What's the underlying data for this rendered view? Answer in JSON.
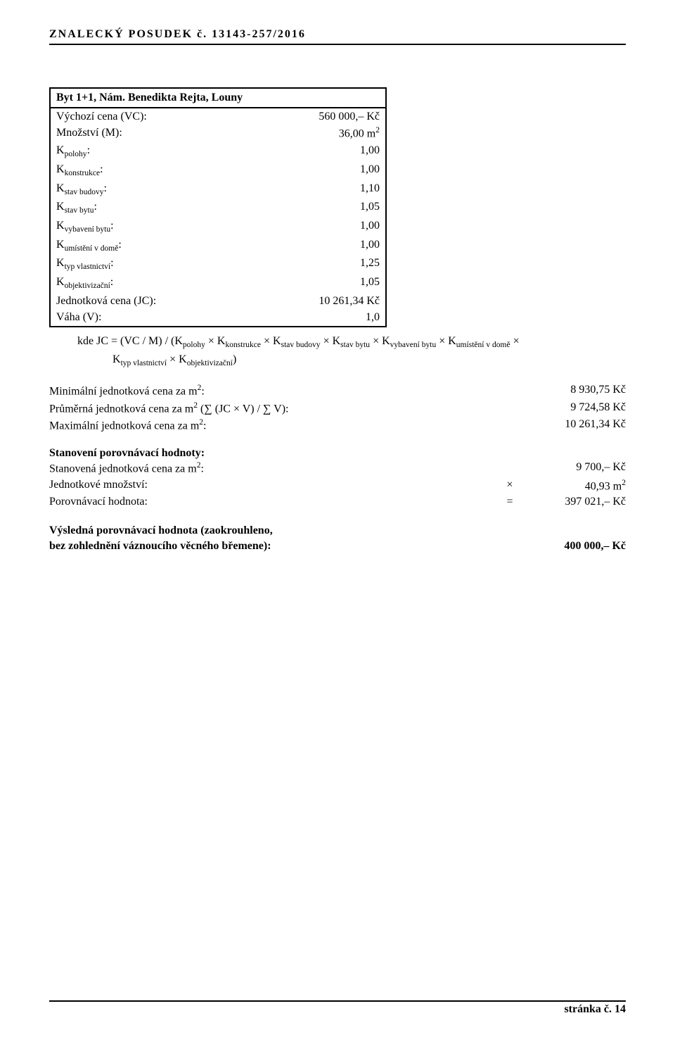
{
  "header": {
    "left": "ZNALECKÝ   POSUDEK č. 13143-257/2016"
  },
  "box": {
    "title": "Byt 1+1, Nám. Benedikta Rejta, Louny",
    "rows": [
      {
        "label_plain": "Výchozí cena (VC):",
        "value": "560 000,–  Kč"
      },
      {
        "label_plain": "Množství (M):",
        "value_html": "36,00 m<span class=\"sup\">2</span>"
      },
      {
        "label_html": "K<span class=\"sub\">polohy</span>:",
        "value": "1,00"
      },
      {
        "label_html": "K<span class=\"sub\">konstrukce</span>:",
        "value": "1,00"
      },
      {
        "label_html": "K<span class=\"sub\">stav budovy</span>:",
        "value": "1,10"
      },
      {
        "label_html": "K<span class=\"sub\">stav bytu</span>:",
        "value": "1,05"
      },
      {
        "label_html": "K<span class=\"sub\">vybavení bytu</span>:",
        "value": "1,00"
      },
      {
        "label_html": "K<span class=\"sub\">umístění v domě</span>:",
        "value": "1,00"
      },
      {
        "label_html": "K<span class=\"sub\">typ vlastnictví</span>:",
        "value": "1,25"
      },
      {
        "label_html": "K<span class=\"sub\">objektivizační</span>:",
        "value": "1,05"
      },
      {
        "label_plain": "Jednotková cena (JC):",
        "value": "10 261,34 Kč"
      },
      {
        "label_plain": "Váha (V):",
        "value": "1,0"
      }
    ]
  },
  "formula": {
    "line1_html": "kde JC = (VC / M) / (K<span class=\"sub\">polohy</span> × K<span class=\"sub\">konstrukce</span> × K<span class=\"sub\">stav budovy</span> × K<span class=\"sub\">stav bytu</span> × K<span class=\"sub\">vybavení bytu</span> × K<span class=\"sub\">umístění v domě</span> ×",
    "line2_html": "K<span class=\"sub\">typ vlastnictví</span> × K<span class=\"sub\">objektivizační</span>)"
  },
  "summary1": {
    "rows": [
      {
        "label_html": "Minimální jednotková cena za m<span class=\"sup\">2</span>:",
        "value": "8 930,75 Kč"
      },
      {
        "label_html": "Průměrná jednotková cena za m<span class=\"sup\">2</span> (∑ (JC × V)   /   ∑ V):",
        "value": "9 724,58 Kč"
      },
      {
        "label_html": "Maximální jednotková cena za m<span class=\"sup\">2</span>:",
        "value": "10 261,34 Kč"
      }
    ]
  },
  "summary2": {
    "heading": "Stanovení porovnávací hodnoty:",
    "rows": [
      {
        "label_html": "Stanovená jednotková cena za m<span class=\"sup\">2</span>:",
        "op": "",
        "value": "9 700,–  Kč"
      },
      {
        "label_plain": "Jednotkové množství:",
        "op": "×",
        "value_html": "40,93 m<span class=\"sup\">2</span>"
      },
      {
        "label_plain": "Porovnávací hodnota:",
        "op": "=",
        "value": "397 021,–  Kč"
      }
    ]
  },
  "result": {
    "line1": "Výsledná porovnávací hodnota (zaokrouhleno,",
    "line2": "bez zohlednění váznoucího věcného břemene):",
    "value": "400 000,–  Kč"
  },
  "footer": {
    "text": "stránka č. 14"
  }
}
